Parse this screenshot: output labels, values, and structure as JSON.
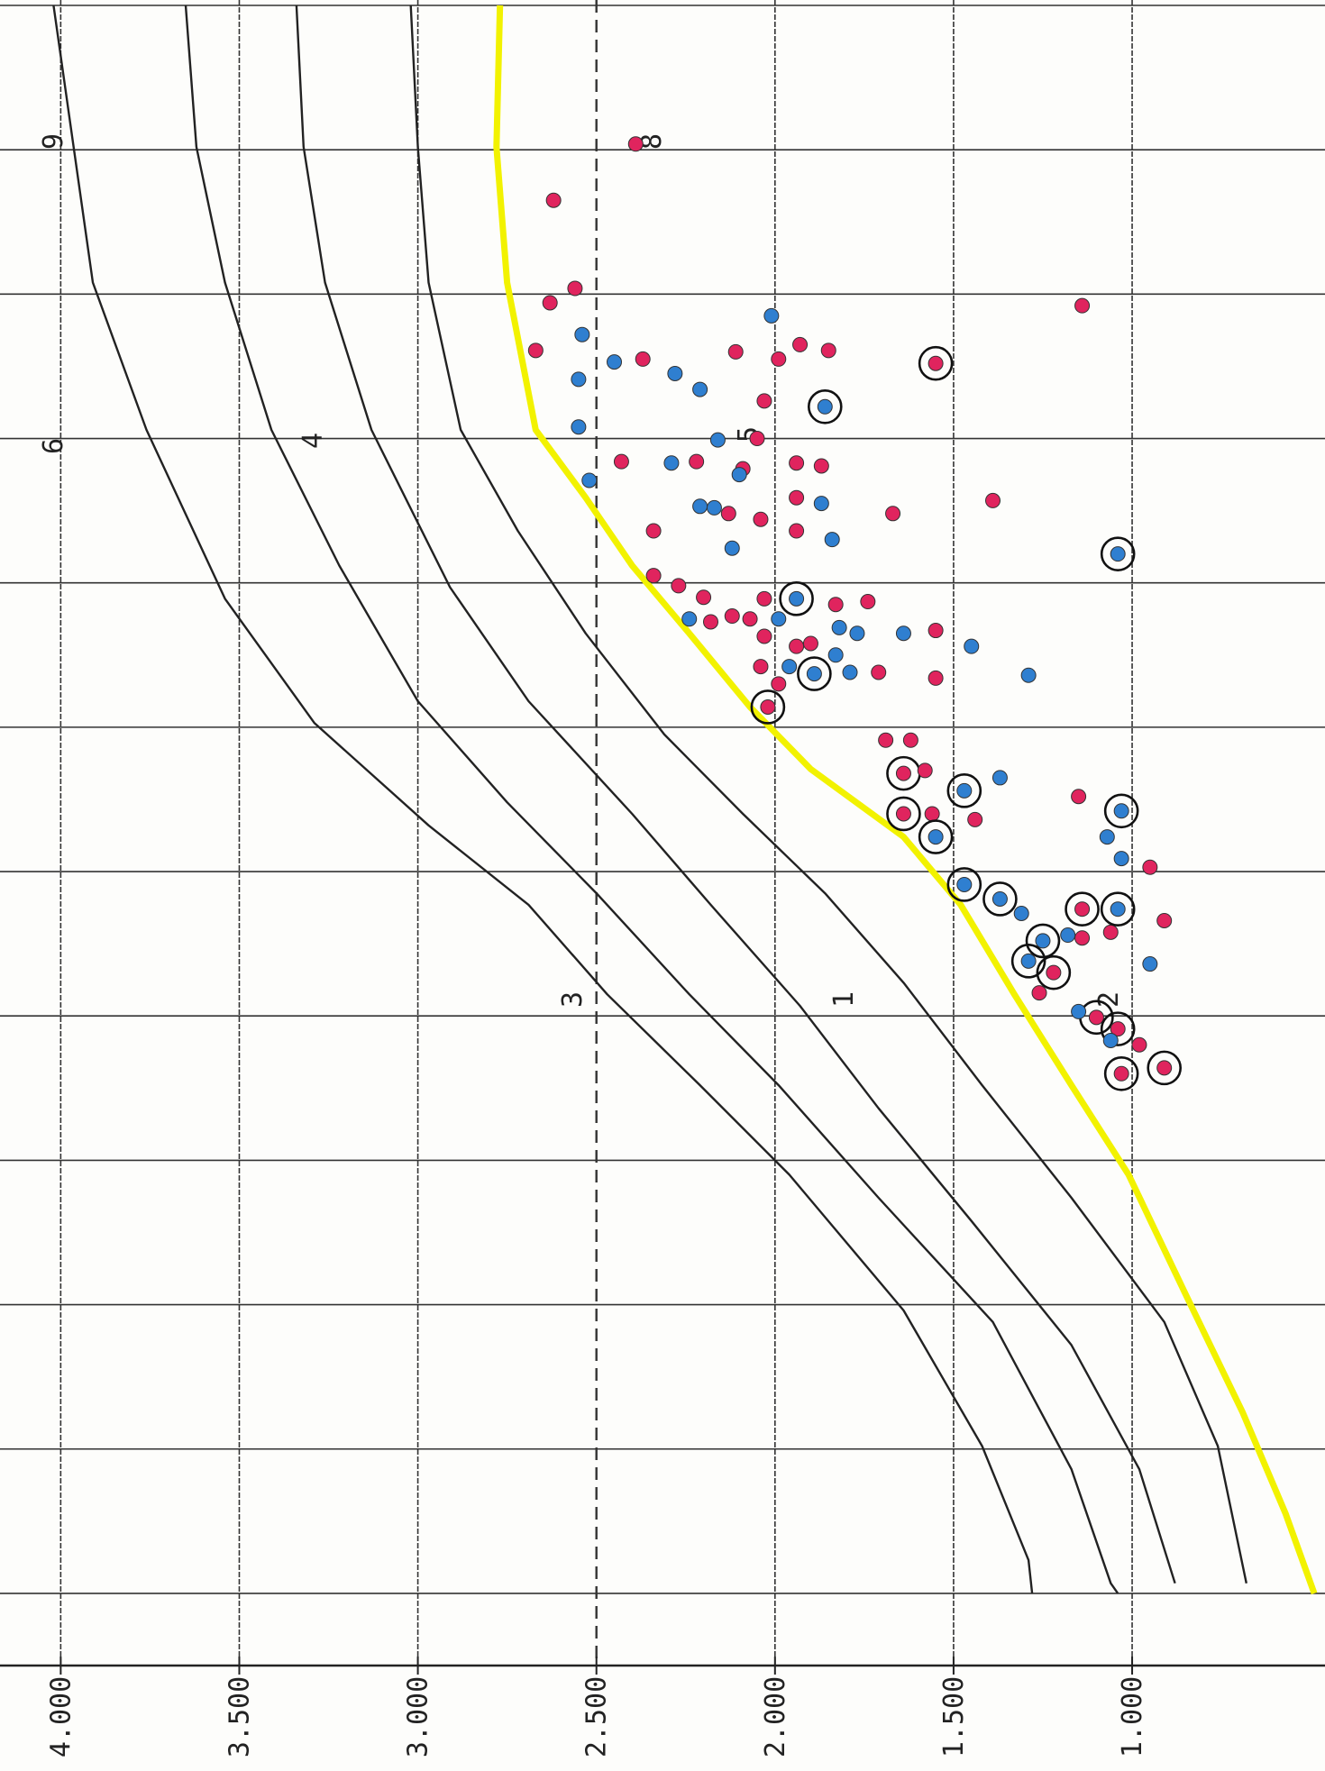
{
  "chart_data": {
    "type": "scatter",
    "ylim": [
      4.17,
      0.46
    ],
    "yticks": [
      {
        "value": 4,
        "label": "4.000"
      },
      {
        "value": 3.5,
        "label": "3.500"
      },
      {
        "value": 3,
        "label": "3.000"
      },
      {
        "value": 2.5,
        "label": "2.500"
      },
      {
        "value": 2,
        "label": "2.000"
      },
      {
        "value": 1.5,
        "label": "1.500"
      },
      {
        "value": 1,
        "label": "1.000"
      }
    ],
    "dashed_ytick": 2.5,
    "xlim": [
      0,
      11.5
    ],
    "xticks": [
      0,
      1,
      2,
      3,
      4,
      5,
      6,
      7,
      8,
      9,
      10,
      11
    ],
    "grid": true,
    "annotations": [
      "9",
      "6",
      "4",
      "3",
      "1",
      "8",
      "5",
      "2"
    ],
    "series": [
      {
        "color": "#e0245e",
        "x": [
          0.96,
          1.35,
          1.96,
          2.06,
          2.39,
          2.45,
          2.4,
          2.45,
          2.35,
          2.39,
          2.74,
          2.48,
          2.08,
          3.16,
          3.16,
          3.21,
          3.0,
          3.17,
          3.19,
          3.52,
          3.56,
          3.41,
          3.64,
          3.52,
          3.43,
          3.64,
          3.95,
          4.02,
          4.1,
          4.27,
          4.23,
          4.25,
          4.11,
          4.15,
          4.13,
          4.33,
          4.37,
          4.44,
          4.42,
          4.58,
          4.62,
          4.66,
          4.86,
          4.7,
          5.09,
          5.09,
          5.32,
          5.3,
          5.6,
          5.6,
          5.64,
          5.48,
          5.97,
          6.26,
          6.42,
          6.34,
          6.7,
          6.46,
          6.84,
          7.01,
          7.09,
          7.2,
          7.36,
          7.4
        ],
        "values": [
          2.39,
          2.62,
          2.56,
          2.63,
          2.67,
          2.37,
          2.11,
          1.99,
          1.93,
          1.85,
          2.03,
          1.55,
          1.14,
          2.43,
          2.22,
          2.09,
          2.05,
          1.94,
          1.87,
          2.13,
          2.04,
          1.94,
          1.94,
          1.67,
          1.39,
          2.34,
          2.34,
          2.27,
          2.2,
          2.18,
          2.12,
          2.07,
          2.03,
          1.83,
          1.74,
          1.55,
          2.03,
          1.94,
          1.9,
          2.04,
          1.71,
          1.55,
          2.02,
          1.99,
          1.69,
          1.62,
          1.64,
          1.58,
          1.64,
          1.56,
          1.44,
          1.15,
          0.95,
          1.14,
          1.06,
          0.91,
          1.22,
          1.14,
          1.26,
          1.1,
          1.04,
          0.98,
          0.91,
          1.03
        ],
        "circled": [
          false,
          false,
          false,
          false,
          false,
          false,
          false,
          false,
          false,
          false,
          false,
          true,
          false,
          false,
          false,
          false,
          false,
          false,
          false,
          false,
          false,
          false,
          false,
          false,
          false,
          false,
          false,
          false,
          false,
          false,
          false,
          false,
          false,
          false,
          false,
          false,
          false,
          false,
          false,
          false,
          false,
          false,
          true,
          false,
          false,
          false,
          true,
          false,
          true,
          false,
          false,
          false,
          false,
          true,
          false,
          false,
          true,
          false,
          false,
          true,
          true,
          false,
          true,
          true
        ]
      },
      {
        "color": "#2f7fd0",
        "x": [
          2.28,
          2.47,
          2.59,
          2.55,
          2.66,
          2.15,
          2.78,
          2.92,
          3.29,
          3.17,
          3.01,
          3.48,
          3.47,
          3.25,
          3.45,
          3.7,
          3.8,
          3.76,
          4.25,
          4.25,
          4.11,
          4.31,
          4.35,
          4.35,
          4.44,
          4.5,
          4.58,
          4.63,
          4.62,
          4.64,
          5.35,
          5.44,
          5.76,
          5.58,
          5.76,
          5.91,
          6.09,
          6.19,
          6.29,
          6.26,
          6.44,
          6.48,
          6.62,
          6.64,
          6.97,
          7.17
        ],
        "values": [
          2.54,
          2.45,
          2.55,
          2.28,
          2.21,
          2.01,
          1.86,
          2.55,
          2.52,
          2.29,
          2.16,
          2.17,
          2.21,
          2.1,
          1.87,
          1.84,
          1.04,
          2.12,
          2.24,
          1.99,
          1.94,
          1.82,
          1.77,
          1.64,
          1.45,
          1.83,
          1.96,
          1.89,
          1.79,
          1.29,
          1.37,
          1.47,
          1.55,
          1.03,
          1.07,
          1.03,
          1.47,
          1.37,
          1.31,
          1.04,
          1.18,
          1.25,
          1.29,
          0.95,
          1.15,
          1.06
        ],
        "circled": [
          false,
          false,
          false,
          false,
          false,
          false,
          true,
          false,
          false,
          false,
          false,
          false,
          false,
          false,
          false,
          false,
          true,
          false,
          false,
          false,
          true,
          false,
          false,
          false,
          false,
          false,
          false,
          true,
          false,
          false,
          false,
          true,
          true,
          true,
          false,
          false,
          true,
          true,
          false,
          true,
          false,
          true,
          true,
          false,
          false,
          false
        ]
      }
    ],
    "lines": [
      {
        "color": "#222222",
        "x": [
          0,
          1.92,
          2.94,
          4.11,
          4.97,
          5.68,
          6.23,
          6.85,
          7.48,
          8.1,
          9.04,
          9.98,
          10.77,
          11.0
        ],
        "values": [
          4.02,
          3.91,
          3.76,
          3.54,
          3.29,
          2.97,
          2.69,
          2.47,
          2.21,
          1.96,
          1.64,
          1.42,
          1.29,
          1.28
        ]
      },
      {
        "color": "#222222",
        "x": [
          0,
          0.98,
          1.92,
          2.94,
          3.88,
          4.82,
          5.52,
          6.15,
          6.85,
          7.48,
          8.26,
          9.12,
          10.14,
          10.93,
          11.0
        ],
        "values": [
          3.65,
          3.62,
          3.54,
          3.41,
          3.22,
          3.0,
          2.75,
          2.5,
          2.24,
          1.99,
          1.71,
          1.39,
          1.17,
          1.06,
          1.04
        ]
      },
      {
        "color": "#222222",
        "x": [
          0,
          0.98,
          1.92,
          2.94,
          4.03,
          4.82,
          5.6,
          6.23,
          6.93,
          7.64,
          8.42,
          9.28,
          10.14,
          10.93
        ],
        "values": [
          3.34,
          3.32,
          3.26,
          3.13,
          2.91,
          2.69,
          2.4,
          2.18,
          1.93,
          1.71,
          1.45,
          1.17,
          0.98,
          0.88
        ]
      },
      {
        "color": "#222222",
        "x": [
          0,
          0.98,
          1.92,
          2.94,
          3.64,
          4.35,
          5.05,
          5.6,
          6.15,
          6.77,
          7.48,
          8.26,
          9.12,
          9.98,
          10.93
        ],
        "values": [
          3.02,
          3.0,
          2.97,
          2.88,
          2.72,
          2.53,
          2.31,
          2.09,
          1.86,
          1.64,
          1.42,
          1.17,
          0.91,
          0.76,
          0.68
        ]
      },
      {
        "color": "#f2f200",
        "x": [
          0,
          0.98,
          1.92,
          2.94,
          3.41,
          3.88,
          4.35,
          4.86,
          5.29,
          5.76,
          6.23,
          6.85,
          7.48,
          8.1,
          8.93,
          9.75,
          10.45,
          11.0
        ],
        "values": [
          2.77,
          2.78,
          2.75,
          2.67,
          2.53,
          2.4,
          2.24,
          2.07,
          1.9,
          1.64,
          1.48,
          1.33,
          1.17,
          1.01,
          0.85,
          0.69,
          0.57,
          0.49
        ]
      }
    ]
  }
}
